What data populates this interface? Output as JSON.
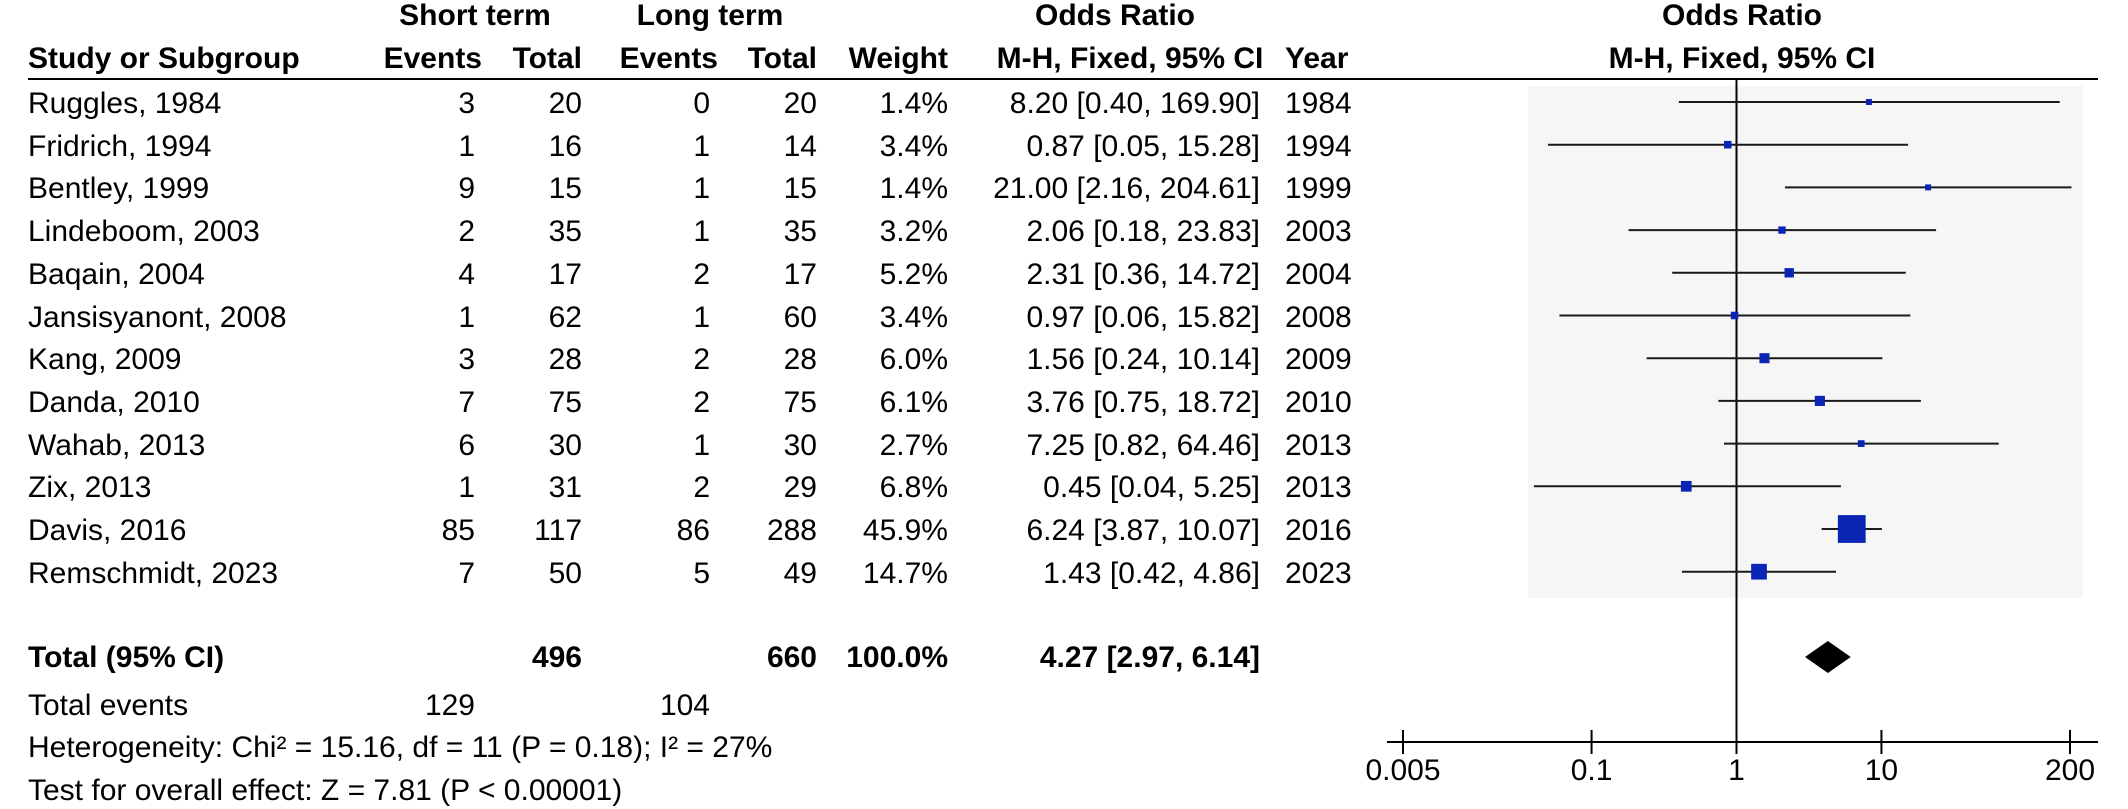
{
  "header": {
    "group1": "Short term",
    "group2": "Long term",
    "or_table": "Odds Ratio",
    "or_plot": "Odds Ratio",
    "col_study": "Study or Subgroup",
    "col_events1": "Events",
    "col_total1": "Total",
    "col_events2": "Events",
    "col_total2": "Total",
    "col_weight": "Weight",
    "col_method": "M-H, Fixed, 95% CI",
    "col_year": "Year",
    "plot_method": "M-H, Fixed, 95% CI"
  },
  "studies": [
    {
      "name": "Ruggles, 1984",
      "e1": "3",
      "n1": "20",
      "e2": "0",
      "n2": "20",
      "weight": "1.4%",
      "ci_text": "8.20 [0.40, 169.90]",
      "year": "1984"
    },
    {
      "name": "Fridrich, 1994",
      "e1": "1",
      "n1": "16",
      "e2": "1",
      "n2": "14",
      "weight": "3.4%",
      "ci_text": "0.87 [0.05, 15.28]",
      "year": "1994"
    },
    {
      "name": "Bentley, 1999",
      "e1": "9",
      "n1": "15",
      "e2": "1",
      "n2": "15",
      "weight": "1.4%",
      "ci_text": "21.00 [2.16, 204.61]",
      "year": "1999"
    },
    {
      "name": "Lindeboom, 2003",
      "e1": "2",
      "n1": "35",
      "e2": "1",
      "n2": "35",
      "weight": "3.2%",
      "ci_text": "2.06 [0.18, 23.83]",
      "year": "2003"
    },
    {
      "name": "Baqain, 2004",
      "e1": "4",
      "n1": "17",
      "e2": "2",
      "n2": "17",
      "weight": "5.2%",
      "ci_text": "2.31 [0.36, 14.72]",
      "year": "2004"
    },
    {
      "name": "Jansisyanont, 2008",
      "e1": "1",
      "n1": "62",
      "e2": "1",
      "n2": "60",
      "weight": "3.4%",
      "ci_text": "0.97 [0.06, 15.82]",
      "year": "2008"
    },
    {
      "name": "Kang, 2009",
      "e1": "3",
      "n1": "28",
      "e2": "2",
      "n2": "28",
      "weight": "6.0%",
      "ci_text": "1.56 [0.24, 10.14]",
      "year": "2009"
    },
    {
      "name": "Danda, 2010",
      "e1": "7",
      "n1": "75",
      "e2": "2",
      "n2": "75",
      "weight": "6.1%",
      "ci_text": "3.76 [0.75, 18.72]",
      "year": "2010"
    },
    {
      "name": "Wahab, 2013",
      "e1": "6",
      "n1": "30",
      "e2": "1",
      "n2": "30",
      "weight": "2.7%",
      "ci_text": "7.25 [0.82, 64.46]",
      "year": "2013"
    },
    {
      "name": "Zix, 2013",
      "e1": "1",
      "n1": "31",
      "e2": "2",
      "n2": "29",
      "weight": "6.8%",
      "ci_text": "0.45 [0.04, 5.25]",
      "year": "2013"
    },
    {
      "name": "Davis, 2016",
      "e1": "85",
      "n1": "117",
      "e2": "86",
      "n2": "288",
      "weight": "45.9%",
      "ci_text": "6.24 [3.87, 10.07]",
      "year": "2016"
    },
    {
      "name": "Remschmidt, 2023",
      "e1": "7",
      "n1": "50",
      "e2": "5",
      "n2": "49",
      "weight": "14.7%",
      "ci_text": "1.43 [0.42, 4.86]",
      "year": "2023"
    }
  ],
  "total": {
    "label": "Total (95% CI)",
    "n1": "496",
    "n2": "660",
    "weight": "100.0%",
    "ci_text": "4.27 [2.97, 6.14]"
  },
  "total_events": {
    "label": "Total events",
    "e1": "129",
    "e2": "104"
  },
  "heterogeneity": "Heterogeneity: Chi² = 15.16, df = 11 (P = 0.18); I² = 27%",
  "overall_effect": "Test for overall effect: Z = 7.81 (P < 0.00001)",
  "colors": {
    "marker": "#0a24b4",
    "diamond": "#000000",
    "panel": "#f6f6f6",
    "line": "#000000"
  },
  "chart_data": {
    "type": "forest",
    "x_scale": "log",
    "xlim": [
      0.005,
      200
    ],
    "ticks": [
      0.005,
      0.1,
      1,
      10,
      200
    ],
    "tick_labels": [
      "0.005",
      "0.1",
      "1",
      "10",
      "200"
    ],
    "null_line": 1,
    "points": [
      {
        "label": "Ruggles, 1984",
        "or": 8.2,
        "lo": 0.4,
        "hi": 169.9,
        "weight": 1.4
      },
      {
        "label": "Fridrich, 1994",
        "or": 0.87,
        "lo": 0.05,
        "hi": 15.28,
        "weight": 3.4
      },
      {
        "label": "Bentley, 1999",
        "or": 21.0,
        "lo": 2.16,
        "hi": 204.61,
        "weight": 1.4
      },
      {
        "label": "Lindeboom, 2003",
        "or": 2.06,
        "lo": 0.18,
        "hi": 23.83,
        "weight": 3.2
      },
      {
        "label": "Baqain, 2004",
        "or": 2.31,
        "lo": 0.36,
        "hi": 14.72,
        "weight": 5.2
      },
      {
        "label": "Jansisyanont, 2008",
        "or": 0.97,
        "lo": 0.06,
        "hi": 15.82,
        "weight": 3.4
      },
      {
        "label": "Kang, 2009",
        "or": 1.56,
        "lo": 0.24,
        "hi": 10.14,
        "weight": 6.0
      },
      {
        "label": "Danda, 2010",
        "or": 3.76,
        "lo": 0.75,
        "hi": 18.72,
        "weight": 6.1
      },
      {
        "label": "Wahab, 2013",
        "or": 7.25,
        "lo": 0.82,
        "hi": 64.46,
        "weight": 2.7
      },
      {
        "label": "Zix, 2013",
        "or": 0.45,
        "lo": 0.04,
        "hi": 5.25,
        "weight": 6.8
      },
      {
        "label": "Davis, 2016",
        "or": 6.24,
        "lo": 3.87,
        "hi": 10.07,
        "weight": 45.9
      },
      {
        "label": "Remschmidt, 2023",
        "or": 1.43,
        "lo": 0.42,
        "hi": 4.86,
        "weight": 14.7
      }
    ],
    "pooled": {
      "label": "Total (95% CI)",
      "or": 4.27,
      "lo": 2.97,
      "hi": 6.14
    }
  }
}
